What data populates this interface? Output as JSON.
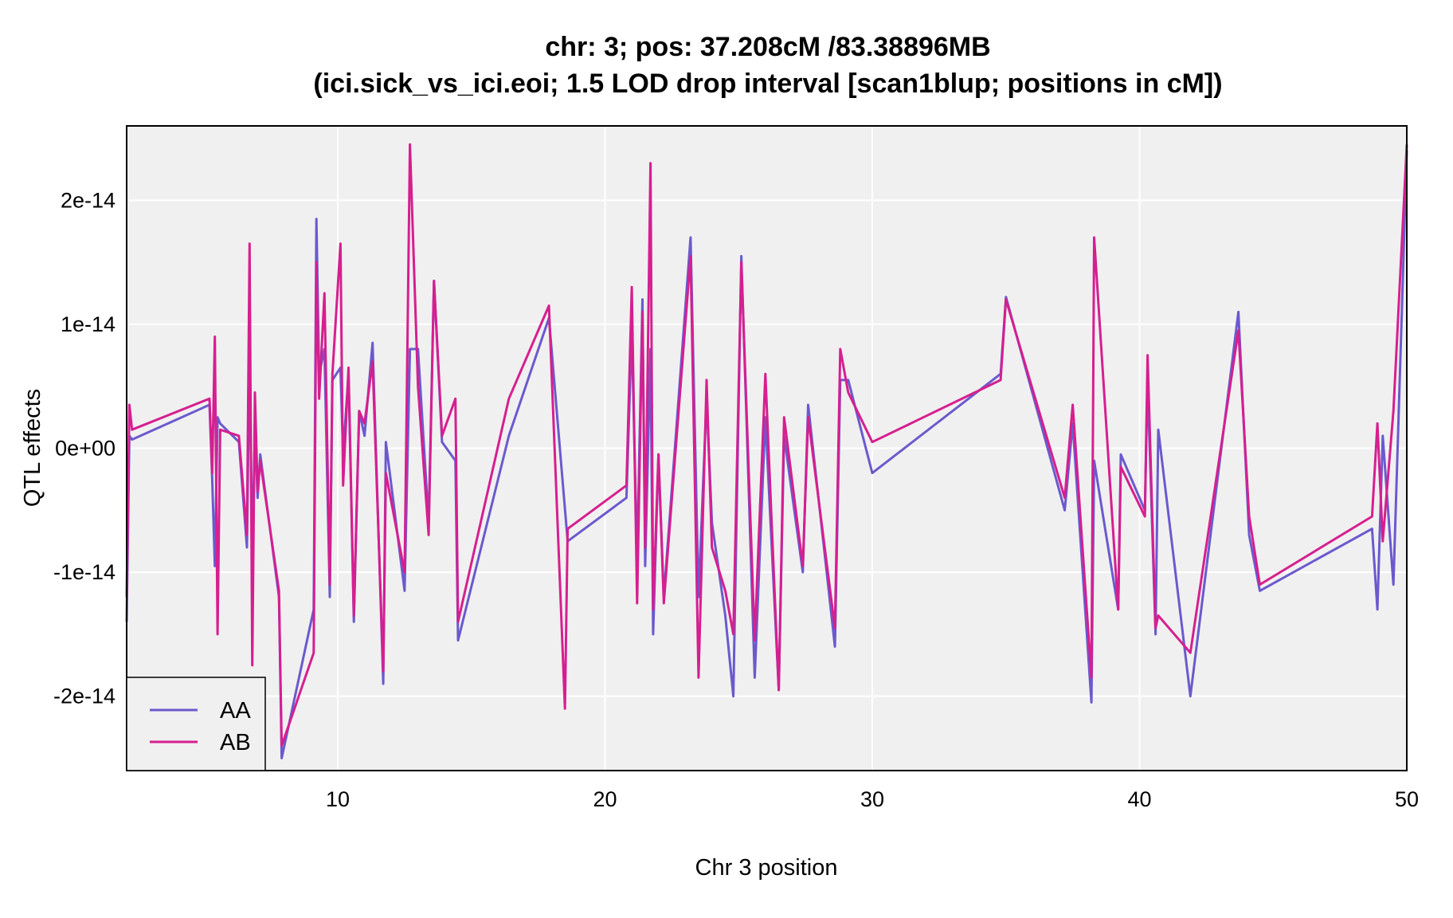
{
  "chart_data": {
    "type": "line",
    "title": "chr: 3; pos: 37.208cM /83.38896MB",
    "subtitle": "(ici.sick_vs_ici.eoi; 1.5 LOD drop interval [scan1blup; positions in cM])",
    "xlabel": "Chr 3 position",
    "ylabel": "QTL effects",
    "xlim": [
      2.1,
      50
    ],
    "ylim": [
      -2.6e-14,
      2.6e-14
    ],
    "x_ticks": [
      10,
      20,
      30,
      40,
      50
    ],
    "x_tick_labels": [
      "10",
      "20",
      "30",
      "40",
      "50"
    ],
    "y_ticks": [
      -2e-14,
      -1e-14,
      0,
      1e-14,
      2e-14
    ],
    "y_tick_labels": [
      "-2e-14",
      "-1e-14",
      "0e+00",
      "1e-14",
      "2e-14"
    ],
    "grid": true,
    "legend_position": "bottom-left",
    "colors": {
      "panel_bg": "#f0f0f0",
      "grid": "#ffffff",
      "AA": "#6a5acd",
      "AB": "#d61f8f"
    },
    "series": [
      {
        "name": "AA",
        "color": "#6a5acd",
        "x": [
          2.1,
          2.2,
          2.3,
          5.2,
          5.3,
          5.4,
          5.5,
          5.6,
          6.3,
          6.6,
          6.7,
          6.8,
          6.9,
          7.0,
          7.1,
          7.8,
          7.9,
          9.1,
          9.2,
          9.3,
          9.5,
          9.7,
          9.8,
          10.1,
          10.2,
          10.4,
          10.6,
          10.8,
          11.0,
          11.3,
          11.7,
          11.8,
          12.5,
          12.7,
          13.0,
          13.4,
          13.6,
          13.9,
          14.4,
          14.5,
          16.4,
          17.9,
          18.6,
          20.8,
          21.0,
          21.2,
          21.4,
          21.5,
          21.7,
          21.8,
          22.0,
          22.2,
          23.2,
          23.5,
          23.8,
          24.0,
          24.5,
          24.8,
          25.1,
          25.6,
          26.0,
          26.5,
          26.7,
          27.4,
          27.6,
          28.6,
          28.8,
          29.1,
          30.0,
          34.8,
          35.0,
          37.2,
          37.5,
          38.2,
          38.3,
          39.2,
          39.3,
          40.2,
          40.3,
          40.6,
          40.7,
          41.9,
          43.7,
          44.1,
          44.5,
          48.7,
          48.9,
          49.1,
          49.5,
          50.0
        ],
        "y": [
          -1.4e-14,
          1e-15,
          7e-16,
          3.5e-15,
          -2.5e-15,
          -9.5e-15,
          2.5e-15,
          2e-15,
          5e-16,
          -8e-15,
          8e-15,
          -9e-15,
          1.5e-15,
          -4e-15,
          -5e-16,
          -1.2e-14,
          -2.5e-14,
          -1.3e-14,
          1.85e-14,
          6e-15,
          8e-15,
          -1.2e-14,
          5.5e-15,
          6.5e-15,
          -5e-16,
          6e-15,
          -1.4e-14,
          3e-15,
          1e-15,
          8.5e-15,
          -1.9e-14,
          5e-16,
          -1.15e-14,
          8e-15,
          8e-15,
          -6e-15,
          1.35e-14,
          5e-16,
          -1e-15,
          -1.55e-14,
          1e-15,
          1.05e-14,
          -7.5e-15,
          -4e-15,
          9.5e-15,
          -9e-15,
          1.2e-14,
          -9.5e-15,
          8e-15,
          -1.5e-14,
          -5e-16,
          -1.2e-14,
          1.7e-14,
          -1.2e-14,
          4e-15,
          -6e-15,
          -1.35e-14,
          -2e-14,
          1.55e-14,
          -1.85e-14,
          2.5e-15,
          -1.95e-14,
          1e-15,
          -1e-14,
          3.5e-15,
          -1.6e-14,
          5.5e-15,
          5.5e-15,
          -2e-15,
          6e-15,
          1.22e-14,
          -5e-15,
          2e-15,
          -2.05e-14,
          -1e-15,
          -1.3e-14,
          -5e-16,
          -5e-15,
          5.5e-15,
          -1.5e-14,
          1.5e-15,
          -2e-14,
          1.1e-14,
          -7e-15,
          -1.15e-14,
          -6.5e-15,
          -1.3e-14,
          1e-15,
          -1.1e-14,
          2.4e-14
        ]
      },
      {
        "name": "AB",
        "color": "#d61f8f",
        "x": [
          2.1,
          2.2,
          2.3,
          5.2,
          5.3,
          5.4,
          5.5,
          5.6,
          6.3,
          6.6,
          6.7,
          6.8,
          6.9,
          7.0,
          7.1,
          7.8,
          7.9,
          9.1,
          9.2,
          9.3,
          9.5,
          9.7,
          9.8,
          10.1,
          10.2,
          10.4,
          10.6,
          10.8,
          11.0,
          11.3,
          11.7,
          11.8,
          12.5,
          12.7,
          13.0,
          13.4,
          13.6,
          13.9,
          14.4,
          14.5,
          16.4,
          17.9,
          18.5,
          18.6,
          20.8,
          21.0,
          21.2,
          21.4,
          21.5,
          21.7,
          21.8,
          22.0,
          22.2,
          23.2,
          23.5,
          23.8,
          24.0,
          24.5,
          24.8,
          25.1,
          25.6,
          26.0,
          26.5,
          26.7,
          27.4,
          27.6,
          28.6,
          28.8,
          29.1,
          30.0,
          34.8,
          35.0,
          37.2,
          37.5,
          38.2,
          38.3,
          39.2,
          39.3,
          40.2,
          40.3,
          40.6,
          40.7,
          41.9,
          43.7,
          44.1,
          44.5,
          48.7,
          48.9,
          49.1,
          49.5,
          50.0
        ],
        "y": [
          -1.2e-14,
          3.5e-15,
          1.5e-15,
          4e-15,
          -2e-15,
          9e-15,
          -1.5e-14,
          1.5e-15,
          1e-15,
          -7e-15,
          1.65e-14,
          -1.75e-14,
          4.5e-15,
          -3.5e-15,
          -1e-15,
          -1.15e-14,
          -2.4e-14,
          -1.65e-14,
          1.5e-14,
          4e-15,
          1.25e-14,
          -1.1e-14,
          6e-15,
          1.65e-14,
          -3e-15,
          6.5e-15,
          -1.35e-14,
          3e-15,
          2e-15,
          7e-15,
          -1.8e-14,
          -2e-15,
          -1e-14,
          2.45e-14,
          5e-15,
          -7e-15,
          1.35e-14,
          1e-15,
          4e-15,
          -1.4e-14,
          4e-15,
          1.15e-14,
          -2.1e-14,
          -6.5e-15,
          -3e-15,
          1.3e-14,
          -1.25e-14,
          1.1e-14,
          -8e-15,
          2.3e-14,
          -1.3e-14,
          -5e-16,
          -1.25e-14,
          1.55e-14,
          -1.85e-14,
          5.5e-15,
          -8e-15,
          -1.15e-14,
          -1.5e-14,
          1.5e-14,
          -1.55e-14,
          6e-15,
          -1.95e-14,
          2.5e-15,
          -9.5e-15,
          2.5e-15,
          -1.45e-14,
          8e-15,
          4.5e-15,
          5e-16,
          5.5e-15,
          1.2e-14,
          -4e-15,
          3.5e-15,
          -1.85e-14,
          1.7e-14,
          -1.3e-14,
          -1.5e-15,
          -5.5e-15,
          7.5e-15,
          -1.45e-14,
          -1.35e-14,
          -1.65e-14,
          9.5e-15,
          -5.5e-15,
          -1.1e-14,
          -5.5e-15,
          2e-15,
          -7.5e-15,
          3e-15,
          2.45e-14
        ]
      }
    ]
  }
}
